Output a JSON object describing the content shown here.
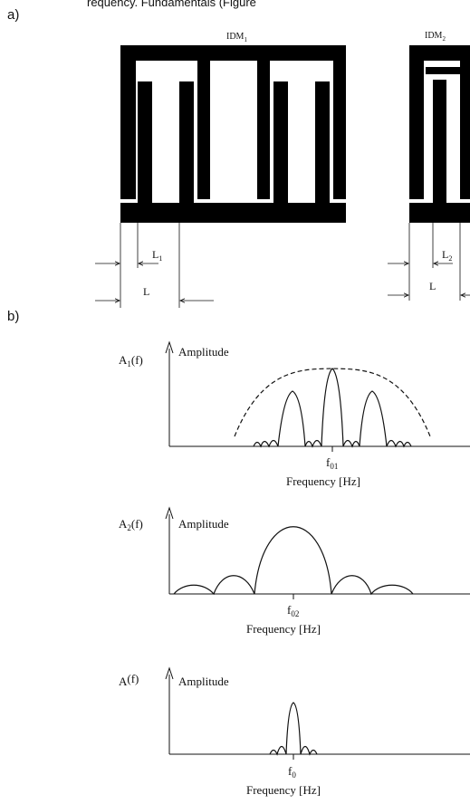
{
  "header_text": "requency. Fundamentals (Figure",
  "panels": {
    "a_label": "a)",
    "b_label": "b)"
  },
  "idm1": {
    "label": "IDM",
    "sub": "1"
  },
  "idm2": {
    "label": "IDM",
    "sub": "2"
  },
  "dims": {
    "L1": {
      "main": "L",
      "sub": "1"
    },
    "L2": {
      "main": "L",
      "sub": "2"
    },
    "L": "L"
  },
  "plots": [
    {
      "ylabel_main": "A",
      "ylabel_sub": "1",
      "ylabel_tail": "(f)",
      "amp": "Amplitude",
      "tick_main": "f",
      "tick_sub": "01",
      "xlabel": "Frequency [Hz]"
    },
    {
      "ylabel_main": "A",
      "ylabel_sub": "2",
      "ylabel_tail": "(f)",
      "amp": "Amplitude",
      "tick_main": "f",
      "tick_sub": "02",
      "xlabel": "Frequency [Hz]"
    },
    {
      "ylabel_main": "A",
      "ylabel_sub": "",
      "ylabel_tail": "(f)",
      "amp": "Amplitude",
      "tick_main": "f",
      "tick_sub": "0",
      "xlabel": "Frequency [Hz]"
    }
  ]
}
